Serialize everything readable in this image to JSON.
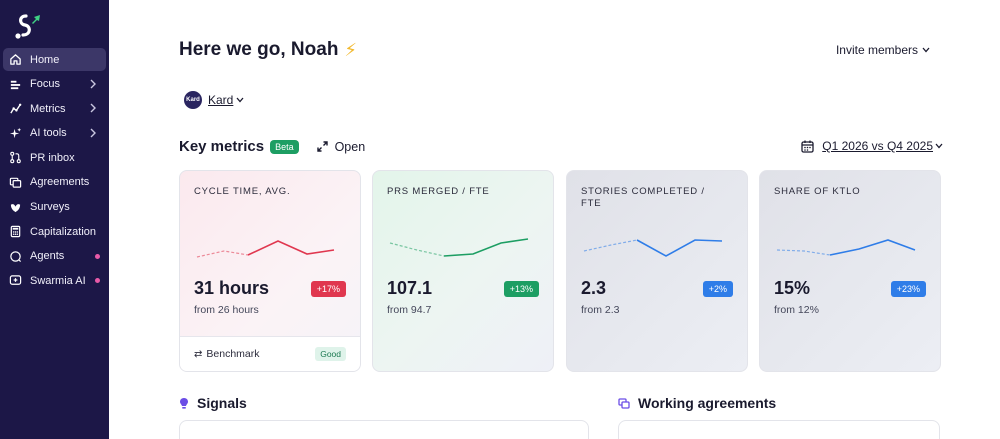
{
  "sidebar": {
    "items": [
      {
        "label": "Home",
        "icon": "home-icon",
        "active": true
      },
      {
        "label": "Focus",
        "icon": "focus-icon",
        "chevron": true
      },
      {
        "label": "Metrics",
        "icon": "metrics-icon",
        "chevron": true
      },
      {
        "label": "AI tools",
        "icon": "sparkle-icon",
        "chevron": true
      },
      {
        "label": "PR inbox",
        "icon": "pull-request-icon"
      },
      {
        "label": "Agreements",
        "icon": "agreements-icon"
      },
      {
        "label": "Surveys",
        "icon": "surveys-icon"
      },
      {
        "label": "Capitalization",
        "icon": "calculator-icon"
      },
      {
        "label": "Agents",
        "icon": "agents-icon",
        "dot": true
      },
      {
        "label": "Swarmia AI",
        "icon": "swarmia-ai-icon",
        "dot": true
      }
    ]
  },
  "header": {
    "greeting": "Here we go, Noah",
    "invite_label": "Invite members"
  },
  "org": {
    "avatar_text": "Kard",
    "name": "Kard"
  },
  "key_metrics": {
    "title": "Key metrics",
    "beta_label": "Beta",
    "open_label": "Open",
    "period_label": "Q1 2026 vs Q4 2025"
  },
  "cards": [
    {
      "title": "CYCLE TIME, AVG.",
      "value": "31 hours",
      "delta": "+17%",
      "delta_color": "#e0374f",
      "from": "from 26 hours",
      "line_color": "#e0374f",
      "footer_label": "Benchmark",
      "footer_badge": "Good"
    },
    {
      "title": "PRS MERGED / FTE",
      "value": "107.1",
      "delta": "+13%",
      "delta_color": "#1d9e63",
      "from": "from 94.7",
      "line_color": "#1d9e63"
    },
    {
      "title": "STORIES COMPLETED / FTE",
      "value": "2.3",
      "delta": "+2%",
      "delta_color": "#2f7de8",
      "from": "from 2.3",
      "line_color": "#2f7de8"
    },
    {
      "title": "SHARE OF KTLO",
      "value": "15%",
      "delta": "+23%",
      "delta_color": "#2f7de8",
      "from": "from 12%",
      "line_color": "#2f7de8"
    }
  ],
  "sections": {
    "signals": "Signals",
    "working_agreements": "Working agreements"
  }
}
